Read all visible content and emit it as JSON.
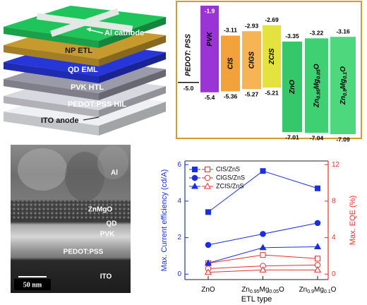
{
  "device_stack": {
    "top_label": "Al cathode",
    "layers": [
      {
        "label": "NP ETL",
        "color": "#1fc45a"
      },
      {
        "label": "QD EML",
        "color": "#c79a2e"
      },
      {
        "label": "PVK HTL",
        "color": "#2636d8"
      },
      {
        "label": "PEDOT:PSS HIL",
        "color": "#9b9aa8"
      },
      {
        "label": "ITO anode",
        "color": "#d8d8e0"
      }
    ]
  },
  "energy_levels": {
    "pedot": {
      "name": "PEDOT: PSS",
      "level": -5.0,
      "level_label": "-5.0"
    },
    "materials": [
      {
        "name": "PVK",
        "lumo": -1.9,
        "homo": -5.4,
        "color": "#9a34d6"
      },
      {
        "name": "CIS",
        "lumo": -3.11,
        "homo": -5.36,
        "color": "#f2a23a"
      },
      {
        "name": "CIGS",
        "lumo": -2.93,
        "homo": -5.27,
        "color": "#f6b454"
      },
      {
        "name": "ZCIS",
        "lumo": -2.69,
        "homo": -5.21,
        "color": "#e4e23e"
      },
      {
        "name": "ZnO",
        "lumo": -3.35,
        "homo": -7.01,
        "color": "#35c86a"
      },
      {
        "name": "Zn0.95Mg0.05O",
        "lumo": -3.22,
        "homo": -7.04,
        "color": "#3fd074"
      },
      {
        "name": "Zn0.9Mg0.1O",
        "lumo": -3.16,
        "homo": -7.09,
        "color": "#4ed87e"
      }
    ]
  },
  "tem": {
    "labels": [
      "Al",
      "ZnMgO",
      "QD",
      "PVK",
      "PEDOT:PSS",
      "ITO"
    ],
    "scale_bar": "50 nm"
  },
  "chart_data": {
    "type": "line",
    "categories": [
      "ZnO",
      "Zn0.95Mg0.05O",
      "Zn0.9Mg0.1O"
    ],
    "x_label": "ETL type",
    "y_label": "Max. Current efficiency (cd/A)",
    "y2_label": "Max. EQE (%)",
    "ylim": [
      -0.3,
      6.2
    ],
    "yticks": [
      0,
      2,
      4,
      6
    ],
    "y2lim": [
      -0.6,
      12.4
    ],
    "y2ticks": [
      0,
      4,
      8,
      12
    ],
    "y_color": "#1a2fe0",
    "y2_color": "#e8302c",
    "series": [
      {
        "name": "CIS/ZnS",
        "marker": "square",
        "values": [
          3.4,
          5.65,
          4.7
        ],
        "y2_values": [
          1.2,
          2.1,
          1.7
        ]
      },
      {
        "name": "CIGS/ZnS",
        "marker": "circle",
        "values": [
          1.6,
          2.2,
          2.8
        ],
        "y2_values": [
          0.6,
          0.9,
          1.0
        ]
      },
      {
        "name": "ZCIS/ZnS",
        "marker": "triangle",
        "values": [
          0.6,
          1.45,
          1.5
        ],
        "y2_values": [
          0.2,
          0.45,
          0.45
        ]
      }
    ]
  }
}
